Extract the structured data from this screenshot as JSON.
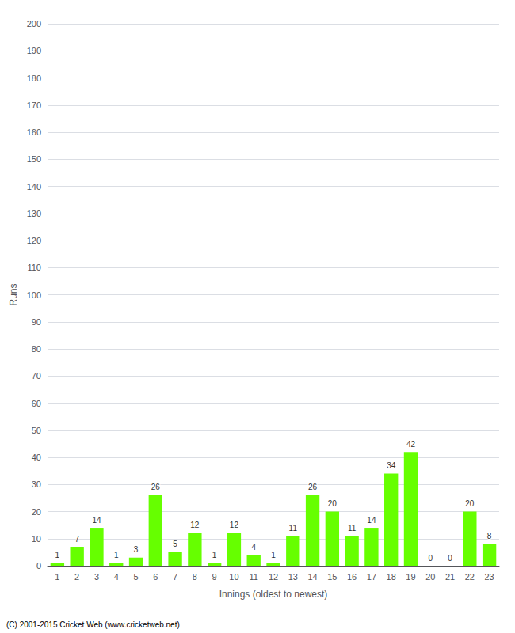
{
  "chart_data": {
    "type": "bar",
    "xlabel": "Innings (oldest to newest)",
    "ylabel": "Runs",
    "categories": [
      1,
      2,
      3,
      4,
      5,
      6,
      7,
      8,
      9,
      10,
      11,
      12,
      13,
      14,
      15,
      16,
      17,
      18,
      19,
      20,
      21,
      22,
      23
    ],
    "values": [
      1,
      7,
      14,
      1,
      3,
      26,
      5,
      12,
      1,
      12,
      4,
      1,
      11,
      26,
      20,
      11,
      14,
      34,
      42,
      0,
      0,
      20,
      8
    ],
    "color": "#66ff00",
    "ylim": [
      0,
      200
    ],
    "yticks": [
      0,
      10,
      20,
      30,
      40,
      50,
      60,
      70,
      80,
      90,
      100,
      110,
      120,
      130,
      140,
      150,
      160,
      170,
      180,
      190,
      200
    ],
    "grid": true,
    "data_labels": true,
    "footer": "(C) 2001-2015 Cricket Web (www.cricketweb.net)"
  }
}
